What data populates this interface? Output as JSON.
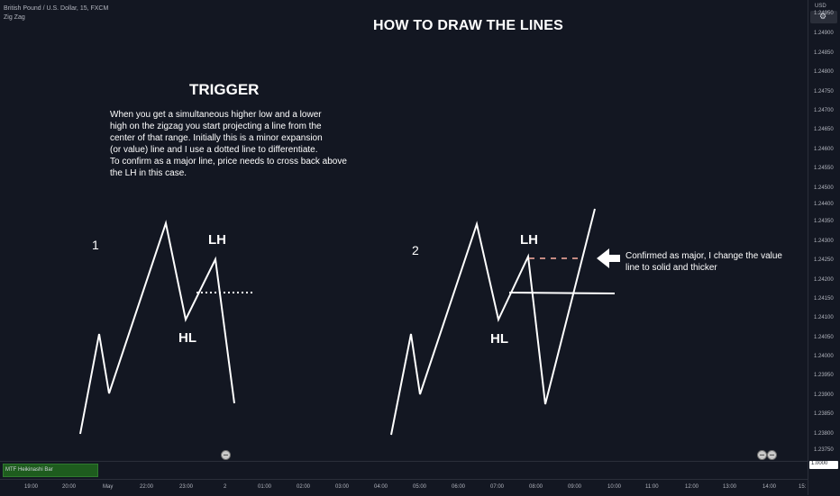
{
  "header": {
    "symbol_title": "British Pound / U.S. Dollar, 15, FXCM",
    "indicator": "Zig Zag"
  },
  "annotations": {
    "main_title": "HOW TO DRAW THE LINES",
    "trigger_title": "TRIGGER",
    "description_lines": [
      "When you get a simultaneous higher low and a lower",
      "high on the zigzag  you start projecting a line from the",
      "center of that range. Initially this is a minor expansion",
      "(or value) line and I use a dotted line to differentiate.",
      "To confirm as a major line, price needs to cross back above",
      "the LH in this case."
    ],
    "example_1": {
      "number": "1",
      "lh": "LH",
      "hl": "HL"
    },
    "example_2": {
      "number": "2",
      "lh": "LH",
      "hl": "HL"
    },
    "note_lines": [
      "Confirmed as major, I change the value",
      "line to solid and thicker"
    ]
  },
  "price_axis": {
    "currency": "USD",
    "ticks": [
      "1.24950",
      "1.24900",
      "1.24850",
      "1.24800",
      "1.24750",
      "1.24700",
      "1.24650",
      "1.24600",
      "1.24550",
      "1.24500",
      "1.24450",
      "1.24400",
      "1.24350",
      "1.24300",
      "1.24250",
      "1.24200",
      "1.24150",
      "1.24100",
      "1.24050",
      "1.24000",
      "1.23950",
      "1.23900",
      "1.23850",
      "1.23800",
      "1.23750"
    ],
    "current_price": "1.0000"
  },
  "time_axis": {
    "ticks": [
      "19:00",
      "20:00",
      "May",
      "22:00",
      "23:00",
      "2",
      "01:00",
      "02:00",
      "03:00",
      "04:00",
      "05:00",
      "06:00",
      "07:00",
      "08:00",
      "09:00",
      "10:00",
      "11:00",
      "12:00",
      "13:00",
      "14:00",
      "15:"
    ]
  },
  "indicator_pane": {
    "label": "MTF Heikinashi Bar"
  },
  "colors": {
    "background": "#131722",
    "lines": "#ffffff",
    "dashed_line": "#c48a82",
    "mtf": "#1e5c1e"
  }
}
